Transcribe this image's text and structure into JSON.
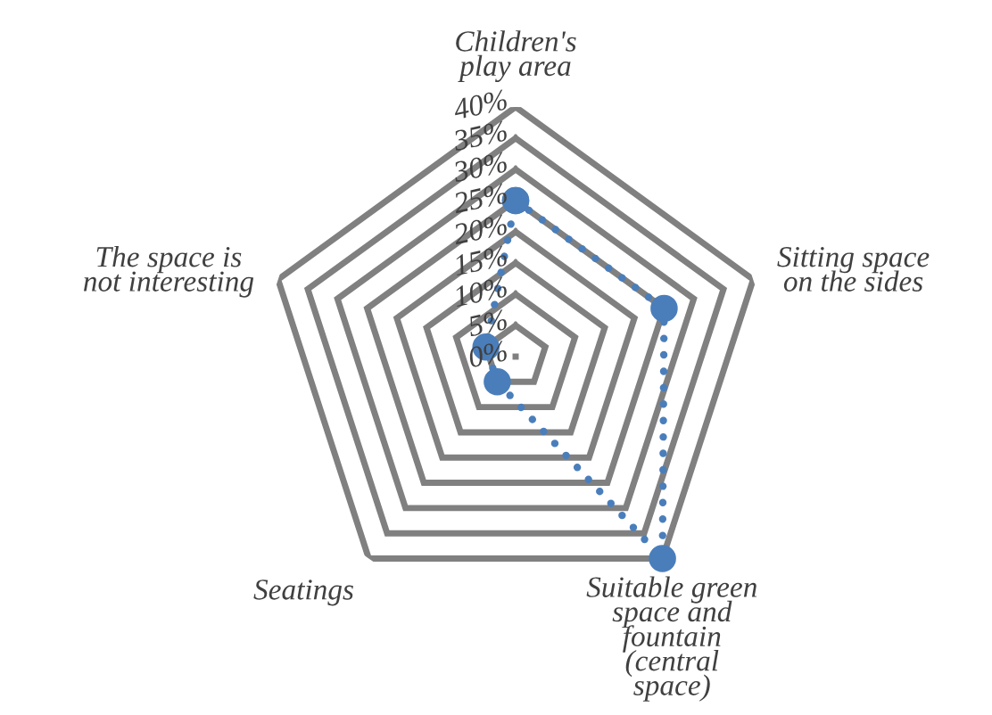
{
  "chart_data": {
    "type": "radar",
    "categories": [
      "Children's\nplay area",
      "Sitting space\non the sides",
      "Suitable green\nspace and\nfountain\n(central\nspace)",
      "Seatings",
      "The space is\nnot interesting"
    ],
    "series": [
      {
        "color": "#4a7ebb",
        "values": [
          25,
          25,
          40,
          5,
          5
        ]
      }
    ],
    "ylim": [
      0,
      40
    ],
    "yticks": [
      {
        "value": 0,
        "label": "0%"
      },
      {
        "value": 5,
        "label": "5%"
      },
      {
        "value": 10,
        "label": "10%"
      },
      {
        "value": 15,
        "label": "15%"
      },
      {
        "value": 20,
        "label": "20%"
      },
      {
        "value": 25,
        "label": "25%"
      },
      {
        "value": 30,
        "label": "30%"
      },
      {
        "value": 35,
        "label": "35%"
      },
      {
        "value": 40,
        "label": "40%"
      }
    ],
    "grid": true,
    "marker": "circle",
    "line_style": "dotted"
  }
}
